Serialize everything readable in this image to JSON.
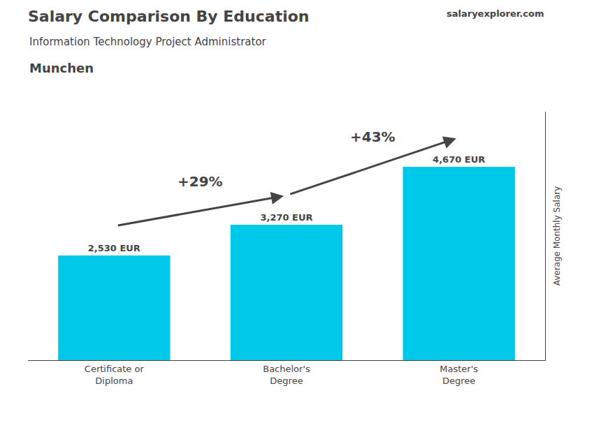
{
  "chart_data": {
    "type": "bar",
    "title": "Salary Comparison By Education",
    "subtitle": "Information Technology Project Administrator",
    "ylabel": "Average Monthly Salary",
    "categories": [
      "Certificate or\nDiploma",
      "Bachelor's\nDegree",
      "Master's\nDegree"
    ],
    "values": [
      2530,
      3270,
      4670
    ],
    "value_labels": [
      "2,530 EUR",
      "3,270 EUR",
      "4,670 EUR"
    ],
    "data_labels": true,
    "color": "#00c8e8",
    "ylim": [
      0,
      6000
    ],
    "tick_labels": "x",
    "grid": false,
    "annotations": [
      {
        "text": "Munchen"
      },
      {
        "text": "salaryexplorer.com"
      },
      {
        "text": "+29%",
        "between": [
          "Certificate or\nDiploma",
          "Bachelor's\nDegree"
        ]
      },
      {
        "text": "+43%",
        "between": [
          "Bachelor's\nDegree",
          "Master's\nDegree"
        ]
      }
    ]
  }
}
